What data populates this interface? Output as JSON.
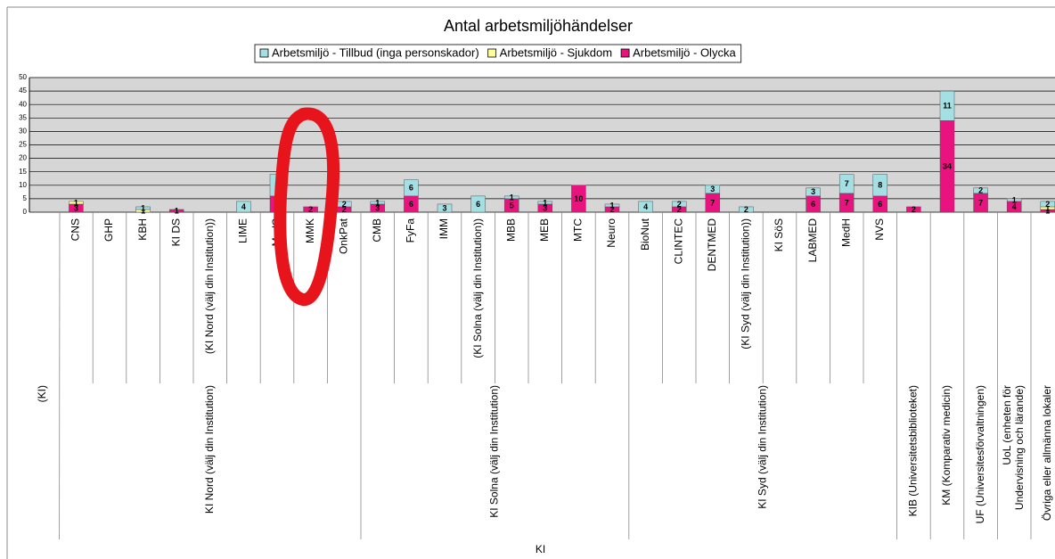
{
  "chart_data": {
    "type": "bar",
    "stacked": true,
    "title": "Antal arbetsmiljöhändelser",
    "outer_group": "KI",
    "groups": [
      {
        "name": "(KI)",
        "categories": [
          null
        ]
      },
      {
        "name": "KI Nord (välj din Institution)",
        "categories": [
          "CNS",
          "GHP",
          "KBH",
          "KI DS",
          "(KI Nord (välj din Institution))",
          "LIME",
          "MedS",
          "MMK",
          "OnkPat"
        ]
      },
      {
        "name": "KI Solna (välj din Institution)",
        "categories": [
          "CMB",
          "FyFa",
          "IMM",
          "(KI Solna (välj din Institution))",
          "MBB",
          "MEB",
          "MTC",
          "Neuro"
        ]
      },
      {
        "name": "KI Syd (välj din Institution)",
        "categories": [
          "BioNut",
          "CLINTEC",
          "DENTMED",
          "(KI Syd (välj din Institution))",
          "KI SöS",
          "LABMED",
          "MedH",
          "NVS"
        ]
      },
      {
        "name": "KIB (Universitetsbiblioteket)",
        "categories": [
          null
        ]
      },
      {
        "name": "KM (Komparativ medicin)",
        "categories": [
          null
        ]
      },
      {
        "name": "UF (Universitesförvaltningen)",
        "categories": [
          null
        ]
      },
      {
        "name": "UoL (enheten för Undervisning och lärande)",
        "categories": [
          null
        ]
      },
      {
        "name": "Övriga eller allmänna lokaler",
        "categories": [
          null
        ]
      }
    ],
    "series": [
      {
        "name": "Arbetsmiljö - Tillbud (inga personskador)",
        "color": "#a3dfe3",
        "values": [
          null,
          null,
          null,
          1,
          null,
          null,
          4,
          8,
          null,
          2,
          1,
          6,
          3,
          6,
          1,
          1,
          null,
          1,
          4,
          2,
          3,
          2,
          null,
          3,
          7,
          8,
          null,
          11,
          2,
          1,
          2
        ]
      },
      {
        "name": "Arbetsmiljö - Sjukdom",
        "color": "#ffff99",
        "values": [
          null,
          1,
          null,
          1,
          null,
          null,
          null,
          null,
          null,
          null,
          null,
          null,
          null,
          null,
          null,
          null,
          null,
          null,
          null,
          null,
          null,
          null,
          null,
          null,
          null,
          null,
          null,
          null,
          null,
          null,
          1
        ]
      },
      {
        "name": "Arbetsmiljö - Olycka",
        "color": "#e8137f",
        "values": [
          null,
          3,
          null,
          null,
          1,
          null,
          null,
          6,
          2,
          2,
          3,
          6,
          null,
          null,
          5,
          3,
          10,
          2,
          null,
          2,
          7,
          null,
          null,
          6,
          7,
          6,
          2,
          34,
          7,
          4,
          1
        ]
      }
    ],
    "ylim": [
      0,
      50
    ],
    "yticks": [
      0,
      5,
      10,
      15,
      20,
      25,
      30,
      35,
      40,
      45,
      50
    ],
    "grid": true
  }
}
